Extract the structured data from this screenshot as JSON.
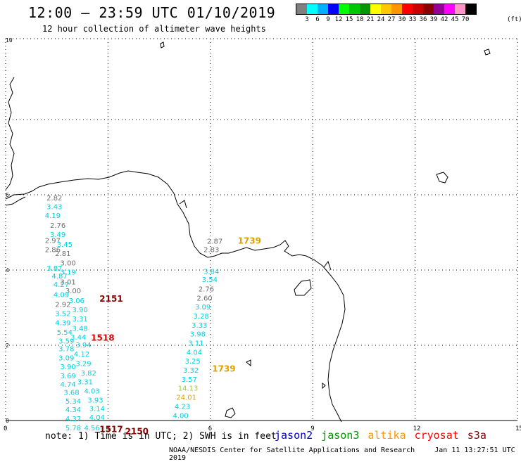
{
  "header": {
    "title": "12:00 – 23:59 UTC 01/10/2019",
    "subtitle": "12 hour collection of altimeter wave heights"
  },
  "legend": {
    "colors": [
      "#808080",
      "#00ffff",
      "#00b0ff",
      "#0000ff",
      "#00ff00",
      "#00c800",
      "#009600",
      "#ffff00",
      "#ffc800",
      "#ff9600",
      "#ff0000",
      "#c80000",
      "#8b0000",
      "#960096",
      "#ff00ff",
      "#ff96c8",
      "#000000"
    ],
    "labels": [
      "3",
      "6",
      "9",
      "12",
      "15",
      "18",
      "21",
      "24",
      "27",
      "30",
      "33",
      "36",
      "39",
      "42",
      "45",
      "70"
    ],
    "unit": "(ft)"
  },
  "axes": {
    "x_ticks": [
      "0",
      "3",
      "6",
      "9",
      "12",
      "15"
    ],
    "y_ticks": [
      "0",
      "2",
      "4",
      "6",
      "10"
    ],
    "xlim": [
      0,
      15
    ],
    "ylim": [
      0,
      10
    ],
    "grid": true
  },
  "measurements": [
    {
      "lon": 1.2,
      "lat": 5.85,
      "value": "2.82",
      "color": "#6e6e6e"
    },
    {
      "lon": 1.2,
      "lat": 5.62,
      "value": "3.43",
      "color": "#00d0e0"
    },
    {
      "lon": 1.15,
      "lat": 5.38,
      "value": "4.19",
      "color": "#00d0e0"
    },
    {
      "lon": 1.3,
      "lat": 5.12,
      "value": "2.76",
      "color": "#6e6e6e"
    },
    {
      "lon": 1.3,
      "lat": 4.88,
      "value": "3.49",
      "color": "#00d0e0"
    },
    {
      "lon": 1.15,
      "lat": 4.72,
      "value": "2.97",
      "color": "#6e6e6e"
    },
    {
      "lon": 1.5,
      "lat": 4.62,
      "value": "3.45",
      "color": "#00d0e0"
    },
    {
      "lon": 1.15,
      "lat": 4.48,
      "value": "2.86",
      "color": "#6e6e6e"
    },
    {
      "lon": 1.45,
      "lat": 4.37,
      "value": "2.81",
      "color": "#6e6e6e"
    },
    {
      "lon": 1.6,
      "lat": 4.12,
      "value": "3.00",
      "color": "#6e6e6e"
    },
    {
      "lon": 1.2,
      "lat": 3.98,
      "value": "3.87",
      "color": "#00d0e0"
    },
    {
      "lon": 1.6,
      "lat": 3.88,
      "value": "3.19",
      "color": "#00d0e0"
    },
    {
      "lon": 1.35,
      "lat": 3.78,
      "value": "4.87",
      "color": "#00d0e0"
    },
    {
      "lon": 1.6,
      "lat": 3.62,
      "value": "3.01",
      "color": "#6e6e6e"
    },
    {
      "lon": 1.4,
      "lat": 3.55,
      "value": "4.27",
      "color": "#00d0e0"
    },
    {
      "lon": 1.75,
      "lat": 3.38,
      "value": "3.00",
      "color": "#6e6e6e"
    },
    {
      "lon": 1.4,
      "lat": 3.28,
      "value": "4.09",
      "color": "#00d0e0"
    },
    {
      "lon": 1.85,
      "lat": 3.12,
      "value": "3.06",
      "color": "#00d0e0"
    },
    {
      "lon": 1.45,
      "lat": 3.02,
      "value": "2.92",
      "color": "#6e6e6e"
    },
    {
      "lon": 1.95,
      "lat": 2.88,
      "value": "3.90",
      "color": "#00d0e0"
    },
    {
      "lon": 1.45,
      "lat": 2.78,
      "value": "3.52",
      "color": "#00d0e0"
    },
    {
      "lon": 1.95,
      "lat": 2.64,
      "value": "3.31",
      "color": "#00d0e0"
    },
    {
      "lon": 1.45,
      "lat": 2.53,
      "value": "4.39",
      "color": "#00d0e0"
    },
    {
      "lon": 1.95,
      "lat": 2.38,
      "value": "3.48",
      "color": "#00d0e0"
    },
    {
      "lon": 1.5,
      "lat": 2.28,
      "value": "5.54",
      "color": "#00d0e0"
    },
    {
      "lon": 1.9,
      "lat": 2.15,
      "value": "3.44",
      "color": "#00d0e0"
    },
    {
      "lon": 1.55,
      "lat": 2.05,
      "value": "3.59",
      "color": "#00d0e0"
    },
    {
      "lon": 2.05,
      "lat": 1.94,
      "value": "3.94",
      "color": "#00d0e0"
    },
    {
      "lon": 1.55,
      "lat": 1.84,
      "value": "3.78",
      "color": "#00d0e0"
    },
    {
      "lon": 2.0,
      "lat": 1.7,
      "value": "4.12",
      "color": "#00d0e0"
    },
    {
      "lon": 1.55,
      "lat": 1.6,
      "value": "3.09",
      "color": "#00d0e0"
    },
    {
      "lon": 2.05,
      "lat": 1.45,
      "value": "3.29",
      "color": "#00d0e0"
    },
    {
      "lon": 1.6,
      "lat": 1.36,
      "value": "3.90",
      "color": "#00d0e0"
    },
    {
      "lon": 2.2,
      "lat": 1.2,
      "value": "3.82",
      "color": "#00d0e0"
    },
    {
      "lon": 1.6,
      "lat": 1.12,
      "value": "3.69",
      "color": "#00d0e0"
    },
    {
      "lon": 2.1,
      "lat": 0.96,
      "value": "3.31",
      "color": "#00d0e0"
    },
    {
      "lon": 1.6,
      "lat": 0.9,
      "value": "4.74",
      "color": "#00d0e0"
    },
    {
      "lon": 2.3,
      "lat": 0.72,
      "value": "4.03",
      "color": "#00d0e0"
    },
    {
      "lon": 1.7,
      "lat": 0.68,
      "value": "3.68",
      "color": "#00d0e0"
    },
    {
      "lon": 2.4,
      "lat": 0.48,
      "value": "3.93",
      "color": "#00d0e0"
    },
    {
      "lon": 1.75,
      "lat": 0.45,
      "value": "5.34",
      "color": "#00d0e0"
    },
    {
      "lon": 2.45,
      "lat": 0.25,
      "value": "3.14",
      "color": "#00d0e0"
    },
    {
      "lon": 1.75,
      "lat": 0.22,
      "value": "4.34",
      "color": "#00d0e0"
    },
    {
      "lon": 2.45,
      "lat": 0.02,
      "value": "4.04",
      "color": "#00d0e0"
    },
    {
      "lon": 1.75,
      "lat": -0.02,
      "value": "4.37",
      "color": "#00d0e0"
    },
    {
      "lon": 1.75,
      "lat": -0.26,
      "value": "5.78",
      "color": "#00d0e0"
    },
    {
      "lon": 2.3,
      "lat": -0.26,
      "value": "4.56",
      "color": "#00d0e0"
    },
    {
      "lon": 5.9,
      "lat": 4.7,
      "value": "2.87",
      "color": "#6e6e6e"
    },
    {
      "lon": 5.8,
      "lat": 4.48,
      "value": "2.83",
      "color": "#6e6e6e"
    },
    {
      "lon": 5.8,
      "lat": 3.9,
      "value": "3.84",
      "color": "#00d0e0"
    },
    {
      "lon": 5.75,
      "lat": 3.68,
      "value": "3.54",
      "color": "#00d0e0"
    },
    {
      "lon": 5.65,
      "lat": 3.43,
      "value": "2.76",
      "color": "#6e6e6e"
    },
    {
      "lon": 5.6,
      "lat": 3.19,
      "value": "2.60",
      "color": "#6e6e6e"
    },
    {
      "lon": 5.55,
      "lat": 2.95,
      "value": "3.09",
      "color": "#00d0e0"
    },
    {
      "lon": 5.5,
      "lat": 2.71,
      "value": "3.28",
      "color": "#00d0e0"
    },
    {
      "lon": 5.45,
      "lat": 2.47,
      "value": "3.33",
      "color": "#00d0e0"
    },
    {
      "lon": 5.4,
      "lat": 2.23,
      "value": "3.98",
      "color": "#00d0e0"
    },
    {
      "lon": 5.35,
      "lat": 1.99,
      "value": "3.11",
      "color": "#00d0e0"
    },
    {
      "lon": 5.3,
      "lat": 1.75,
      "value": "4.04",
      "color": "#00d0e0"
    },
    {
      "lon": 5.25,
      "lat": 1.51,
      "value": "3.25",
      "color": "#00d0e0"
    },
    {
      "lon": 5.2,
      "lat": 1.27,
      "value": "3.32",
      "color": "#00d0e0"
    },
    {
      "lon": 5.15,
      "lat": 1.03,
      "value": "3.57",
      "color": "#00d0e0"
    },
    {
      "lon": 5.05,
      "lat": 0.79,
      "value": "14.13",
      "color": "#9acd32"
    },
    {
      "lon": 5.0,
      "lat": 0.55,
      "value": "24.01",
      "color": "#e0a000"
    },
    {
      "lon": 4.95,
      "lat": 0.31,
      "value": "4.23",
      "color": "#00d0e0"
    },
    {
      "lon": 4.9,
      "lat": 0.07,
      "value": "4.00",
      "color": "#00d0e0"
    }
  ],
  "time_labels": [
    {
      "lon": 2.75,
      "lat": 3.16,
      "text": "2151",
      "color": "#8b0000"
    },
    {
      "lon": 2.5,
      "lat": 2.12,
      "text": "1518",
      "color": "#e00000"
    },
    {
      "lon": 2.75,
      "lat": -0.31,
      "text": "1517",
      "color": "#8b0000"
    },
    {
      "lon": 3.5,
      "lat": -0.36,
      "text": "2150",
      "color": "#8b0000"
    },
    {
      "lon": 6.8,
      "lat": 4.7,
      "text": "1739",
      "color": "#e0a000"
    },
    {
      "lon": 6.05,
      "lat": 1.3,
      "text": "1739",
      "color": "#e0a000"
    }
  ],
  "footer": {
    "note": "note: 1) Time is in UTC; 2) SWH is in feet",
    "satellites": [
      {
        "name": "jason2",
        "color": "#0000c8"
      },
      {
        "name": "jason3",
        "color": "#009600"
      },
      {
        "name": "altika",
        "color": "#ff9600"
      },
      {
        "name": "cryosat",
        "color": "#ff0000"
      },
      {
        "name": "s3a",
        "color": "#8b0000"
      }
    ],
    "credit": "NOAA/NESDIS Center for Satellite Applications and Research",
    "timestamp": "Jan 11 13:27:51 UTC 2019"
  }
}
